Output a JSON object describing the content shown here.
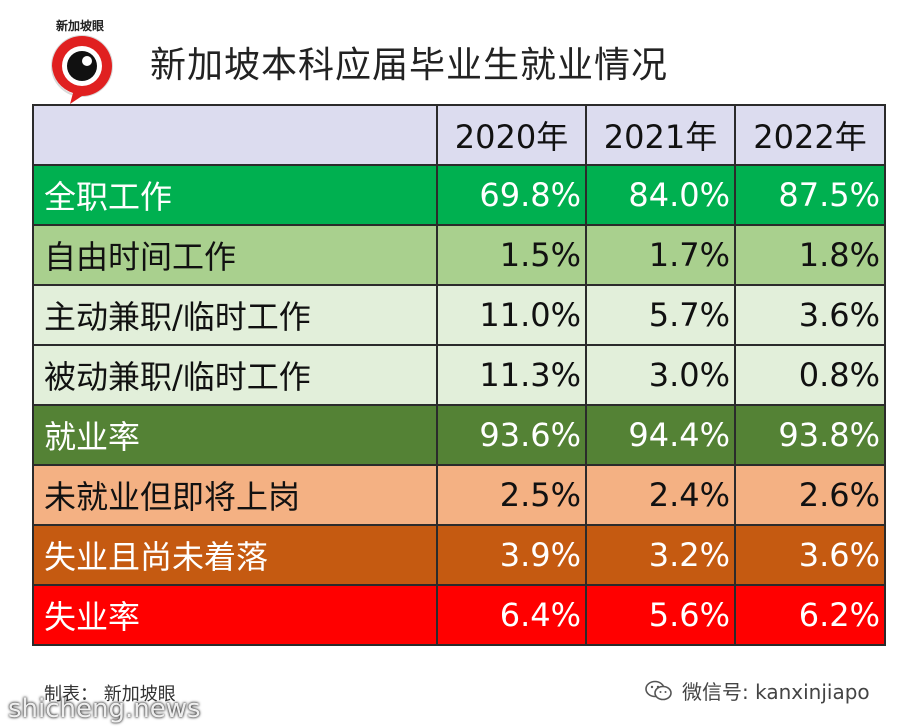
{
  "logo": {
    "text": "新加坡眼"
  },
  "title": "新加坡本科应届毕业生就业情况",
  "chart_data": {
    "type": "table",
    "columns": [
      "",
      "2020年",
      "2021年",
      "2022年"
    ],
    "rows": [
      {
        "label": "全职工作",
        "values": [
          "69.8%",
          "84.0%",
          "87.5%"
        ],
        "bg": "#00b050",
        "fg": "#ffffff"
      },
      {
        "label": "自由时间工作",
        "values": [
          "1.5%",
          "1.7%",
          "1.8%"
        ],
        "bg": "#a9d08e",
        "fg": "#111111"
      },
      {
        "label": "主动兼职/临时工作",
        "values": [
          "11.0%",
          "5.7%",
          "3.6%"
        ],
        "bg": "#e2efda",
        "fg": "#111111"
      },
      {
        "label": "被动兼职/临时工作",
        "values": [
          "11.3%",
          "3.0%",
          "0.8%"
        ],
        "bg": "#e2efda",
        "fg": "#111111"
      },
      {
        "label": "就业率",
        "values": [
          "93.6%",
          "94.4%",
          "93.8%"
        ],
        "bg": "#548235",
        "fg": "#ffffff"
      },
      {
        "label": "未就业但即将上岗",
        "values": [
          "2.5%",
          "2.4%",
          "2.6%"
        ],
        "bg": "#f4b183",
        "fg": "#111111"
      },
      {
        "label": "失业且尚未着落",
        "values": [
          "3.9%",
          "3.2%",
          "3.6%"
        ],
        "bg": "#c55a11",
        "fg": "#ffffff"
      },
      {
        "label": "失业率",
        "values": [
          "6.4%",
          "5.6%",
          "6.2%"
        ],
        "bg": "#ff0000",
        "fg": "#ffffff"
      }
    ]
  },
  "footer": {
    "credit": "制表：  新加坡眼",
    "wechat": "微信号: kanxinjiapo",
    "watermark": "shicheng.news"
  }
}
